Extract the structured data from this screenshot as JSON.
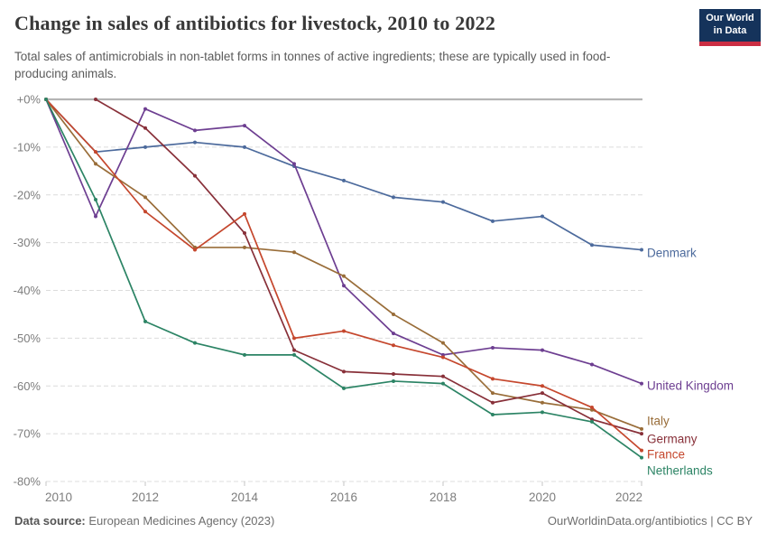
{
  "header": {
    "title": "Change in sales of antibiotics for livestock, 2010 to 2022",
    "subtitle": "Total sales of antimicrobials in non-tablet forms in tonnes of active ingredients; these are typically used in food-producing animals.",
    "logo": {
      "line1": "Our World",
      "line2": "in Data",
      "bg_color": "#15335B",
      "bar_color": "#CB2D43"
    }
  },
  "chart_data": {
    "type": "line",
    "title": "Change in sales of antibiotics for livestock, 2010 to 2022",
    "xlabel": "",
    "ylabel": "",
    "x": [
      2010,
      2011,
      2012,
      2013,
      2014,
      2015,
      2016,
      2017,
      2018,
      2019,
      2020,
      2021,
      2022
    ],
    "xlim": [
      2010,
      2022
    ],
    "ylim": [
      -80,
      0
    ],
    "grid": "horizontal-dashed",
    "legend_position": "right-end-labels",
    "x_tick_labels": [
      "2010",
      "2012",
      "2014",
      "2016",
      "2018",
      "2020",
      "2022"
    ],
    "y_tick_labels": [
      "+0%",
      "-10%",
      "-20%",
      "-30%",
      "-40%",
      "-50%",
      "-60%",
      "-70%",
      "-80%"
    ],
    "unit": "% change relative to 2010",
    "series": [
      {
        "name": "Denmark",
        "color": "#4C6A9C",
        "values": [
          0,
          -11,
          -10,
          -9,
          -10,
          -14,
          -17,
          -20.5,
          -21.5,
          -25.5,
          -24.5,
          -30.5,
          -31.5
        ]
      },
      {
        "name": "United Kingdom",
        "color": "#6D3E91",
        "values": [
          0,
          -24.5,
          -2,
          -6.5,
          -5.5,
          -13.5,
          -39,
          -49,
          -53.5,
          -52,
          -52.5,
          -55.5,
          -59.5
        ]
      },
      {
        "name": "Italy",
        "color": "#996D39",
        "values": [
          0,
          -13.5,
          -20.5,
          -31,
          -31,
          -32,
          -37,
          -45,
          -51,
          -61.5,
          -63.5,
          -65,
          -69
        ]
      },
      {
        "name": "Germany",
        "color": "#883039",
        "values": [
          null,
          0,
          -6,
          -16,
          -28,
          -52.5,
          -57,
          -57.5,
          -58,
          -63.5,
          -61.5,
          -67,
          -70
        ]
      },
      {
        "name": "France",
        "color": "#C5472D",
        "values": [
          0,
          -11,
          -23.5,
          -31.5,
          -24,
          -50,
          -48.5,
          -51.5,
          -54,
          -58.5,
          -60,
          -64.5,
          -73.5
        ]
      },
      {
        "name": "Netherlands",
        "color": "#2C8465",
        "values": [
          0,
          -21,
          -46.5,
          -51,
          -53.5,
          -53.5,
          -60.5,
          -59,
          -59.5,
          -66,
          -65.5,
          -67.5,
          -75
        ]
      }
    ]
  },
  "footer": {
    "source_label": "Data source:",
    "source_text": " European Medicines Agency (2023)",
    "link_text": "OurWorldinData.org/antibiotics | CC BY"
  }
}
